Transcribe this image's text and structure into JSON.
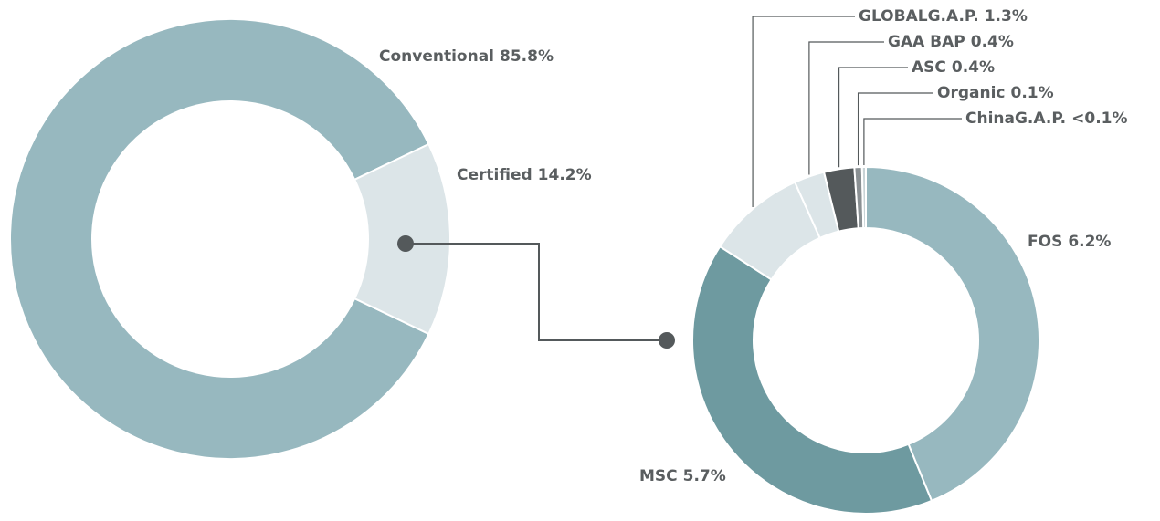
{
  "chart_data": [
    {
      "type": "pie",
      "categories": [
        "Conventional",
        "Certified"
      ],
      "values": [
        85.8,
        14.2
      ],
      "value_labels": [
        "85.8%",
        "14.2%"
      ],
      "colors": [
        "#97b8bf",
        "#dce5e8"
      ]
    },
    {
      "type": "pie",
      "categories": [
        "FOS",
        "MSC",
        "GLOBALG.A.P.",
        "GAA BAP",
        "ASC",
        "Organic",
        "ChinaG.A.P."
      ],
      "values": [
        6.2,
        5.7,
        1.3,
        0.4,
        0.4,
        0.1,
        0.05
      ],
      "value_labels": [
        "6.2%",
        "5.7%",
        "1.3%",
        "0.4%",
        "0.4%",
        "0.1%",
        "<0.1%"
      ],
      "colors": [
        "#97b8bf",
        "#6e9aa0",
        "#dce5e8",
        "#dce5e8",
        "#54595b",
        "#8a9093",
        "#c9d3d6"
      ]
    }
  ]
}
